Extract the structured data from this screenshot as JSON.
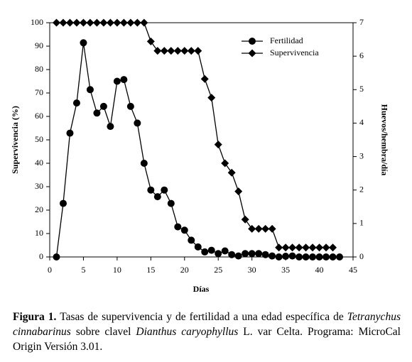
{
  "chart_data": {
    "type": "line",
    "xlabel": "Días",
    "ylabel": "Supervivencia (%)",
    "y2label": "Huevos/hembra/día",
    "xlim": [
      0,
      45
    ],
    "xticks": [
      0,
      5,
      10,
      15,
      20,
      25,
      30,
      35,
      40,
      45
    ],
    "ylim": [
      0,
      100
    ],
    "yticks": [
      0,
      10,
      20,
      30,
      40,
      50,
      60,
      70,
      80,
      90,
      100
    ],
    "y2lim": [
      0,
      7
    ],
    "y2ticks": [
      0,
      1,
      2,
      3,
      4,
      5,
      6,
      7
    ],
    "legend": "upper right",
    "series": [
      {
        "name": "Fertilidad",
        "color": "#000000",
        "marker": "circle",
        "axis": "y2",
        "x": [
          1,
          2,
          3,
          4,
          5,
          6,
          7,
          8,
          9,
          10,
          11,
          12,
          13,
          14,
          15,
          16,
          17,
          18,
          19,
          20,
          21,
          22,
          23,
          24,
          25,
          26,
          27,
          28,
          29,
          30,
          31,
          32,
          33,
          34,
          35,
          36,
          37,
          38,
          39,
          40,
          41,
          42,
          43
        ],
        "values": [
          0,
          1.6,
          3.7,
          4.6,
          6.4,
          5.0,
          4.3,
          4.5,
          3.9,
          5.25,
          5.3,
          4.5,
          4.0,
          2.8,
          2.0,
          1.8,
          2.0,
          1.6,
          0.9,
          0.8,
          0.5,
          0.3,
          0.15,
          0.2,
          0.1,
          0.18,
          0.07,
          0.03,
          0.1,
          0.1,
          0.1,
          0.07,
          0.03,
          0,
          0.02,
          0.03,
          0,
          0,
          0,
          0,
          0,
          0,
          0
        ]
      },
      {
        "name": "Supervivencia",
        "color": "#000000",
        "marker": "diamond",
        "x": [
          1,
          2,
          3,
          4,
          5,
          6,
          7,
          8,
          9,
          10,
          11,
          12,
          13,
          14,
          15,
          16,
          17,
          18,
          19,
          20,
          21,
          22,
          23,
          24,
          25,
          26,
          27,
          28,
          29,
          30,
          31,
          32,
          33,
          34,
          35,
          36,
          37,
          38,
          39,
          40,
          41,
          42
        ],
        "values": [
          100,
          100,
          100,
          100,
          100,
          100,
          100,
          100,
          100,
          100,
          100,
          100,
          100,
          100,
          92,
          88,
          88,
          88,
          88,
          88,
          88,
          88,
          76,
          68,
          48,
          40,
          36,
          28,
          16,
          12,
          12,
          12,
          12,
          4,
          4,
          4,
          4,
          4,
          4,
          4,
          4,
          4
        ]
      }
    ]
  },
  "caption": {
    "label": "Figura 1.",
    "runs": [
      " Tasas de supervivencia y de fertilidad a una edad específica de ",
      "Tetranychus cinnabarinus",
      " sobre clavel ",
      "Dianthus caryophyllus",
      " L. var Celta. Programa: MicroCal Origin Versión 3.01."
    ]
  }
}
